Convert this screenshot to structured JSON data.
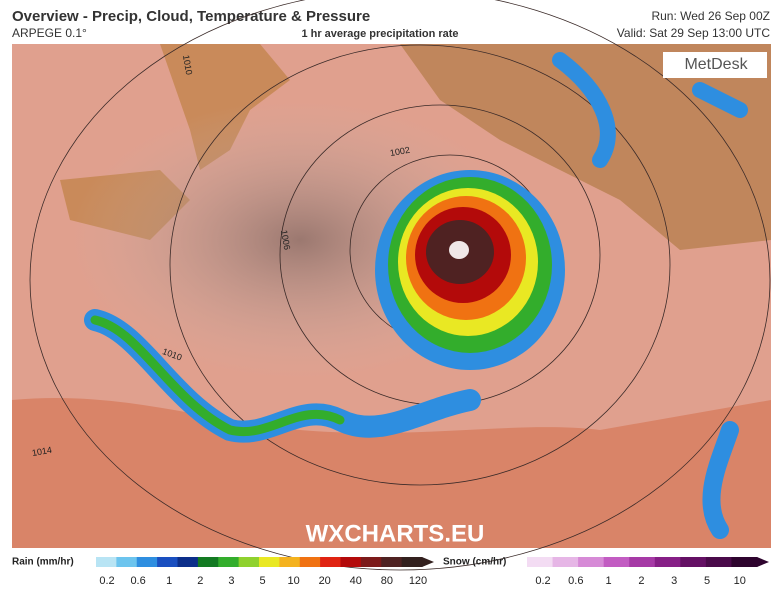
{
  "header": {
    "title": "Overview - Precip, Cloud, Temperature & Pressure",
    "model": "ARPEGE 0.1°",
    "subtitle": "1 hr average precipitation rate",
    "run": "Run: Wed 26 Sep 00Z",
    "valid": "Valid: Sat 29 Sep 13:00 UTC"
  },
  "map": {
    "brand": "MetDesk",
    "watermark": "WXCHARTS.EU",
    "isobar_labels": [
      1010,
      1002,
      1006,
      1010,
      1014
    ]
  },
  "legend": {
    "rain": {
      "title": "Rain (mm/hr)",
      "ticks": [
        0.2,
        0.6,
        1,
        2,
        3,
        5,
        10,
        20,
        40,
        80,
        120
      ],
      "colors": [
        "#b8e4f4",
        "#6cc4ee",
        "#2e8ee0",
        "#1a4fc0",
        "#0c2f8a",
        "#137a22",
        "#33ad2c",
        "#8fd12e",
        "#e9e823",
        "#f4b21e",
        "#f07212",
        "#e02312",
        "#b30a0a",
        "#7c1a1a",
        "#4f2222",
        "#33201e"
      ]
    },
    "snow": {
      "title": "Snow (cm/hr)",
      "ticks": [
        0.2,
        0.6,
        1,
        2,
        3,
        5,
        10
      ],
      "colors": [
        "#f3dcf3",
        "#e6b6e6",
        "#d68ad6",
        "#c25cc2",
        "#a63aa6",
        "#861f86",
        "#641064",
        "#4a0a4a",
        "#2e042e"
      ]
    }
  }
}
